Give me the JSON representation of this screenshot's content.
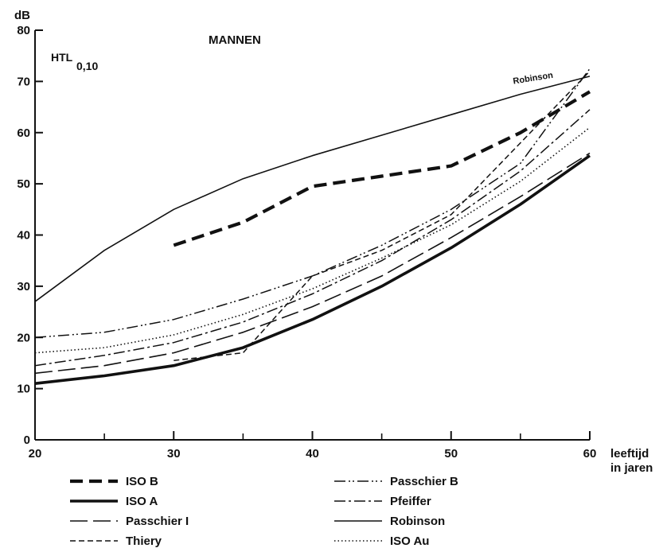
{
  "chart_data": {
    "type": "line",
    "ylabel": "dB",
    "xlabel": "leeftijd\nin jaren",
    "title": "MANNEN",
    "subtitle": {
      "main": "HTL",
      "sub": "0,10"
    },
    "xlim": [
      20,
      60
    ],
    "ylim": [
      0,
      80
    ],
    "x_ticks": [
      20,
      30,
      40,
      50,
      60
    ],
    "x_minor_ticks": [
      25,
      35,
      45,
      55
    ],
    "y_ticks": [
      0,
      10,
      20,
      30,
      40,
      50,
      60,
      70,
      80
    ],
    "grid": false,
    "legend_position": "bottom",
    "series": [
      {
        "name": "ISO B",
        "style": "bold-dash",
        "points": [
          [
            30,
            38
          ],
          [
            35,
            42.5
          ],
          [
            40,
            49.5
          ],
          [
            45,
            51.5
          ],
          [
            50,
            53.5
          ],
          [
            55,
            60
          ],
          [
            60,
            68
          ]
        ]
      },
      {
        "name": "ISO A",
        "style": "bold-solid",
        "points": [
          [
            20,
            11
          ],
          [
            25,
            12.5
          ],
          [
            30,
            14.5
          ],
          [
            35,
            18
          ],
          [
            40,
            23.5
          ],
          [
            45,
            30
          ],
          [
            50,
            37.5
          ],
          [
            55,
            46
          ],
          [
            60,
            55.5
          ]
        ]
      },
      {
        "name": "Passchier I",
        "style": "long-dash",
        "points": [
          [
            20,
            13
          ],
          [
            25,
            14.5
          ],
          [
            30,
            17
          ],
          [
            35,
            21
          ],
          [
            40,
            26
          ],
          [
            45,
            32
          ],
          [
            50,
            39.5
          ],
          [
            55,
            47.5
          ],
          [
            60,
            56
          ]
        ]
      },
      {
        "name": "Thiery",
        "style": "dash",
        "points": [
          [
            30,
            15.5
          ],
          [
            35,
            17
          ],
          [
            40,
            32
          ],
          [
            45,
            37
          ],
          [
            50,
            44
          ],
          [
            55,
            58
          ],
          [
            60,
            72
          ]
        ]
      },
      {
        "name": "Passchier B",
        "style": "dash-dot-dot",
        "points": [
          [
            20,
            20
          ],
          [
            25,
            21
          ],
          [
            30,
            23.5
          ],
          [
            35,
            27.5
          ],
          [
            40,
            32
          ],
          [
            45,
            38
          ],
          [
            50,
            45
          ],
          [
            55,
            54
          ],
          [
            60,
            72.5
          ]
        ]
      },
      {
        "name": "Pfeiffer",
        "style": "dash-dot",
        "points": [
          [
            20,
            14.5
          ],
          [
            25,
            16.5
          ],
          [
            30,
            19
          ],
          [
            35,
            23
          ],
          [
            40,
            28.5
          ],
          [
            45,
            35
          ],
          [
            50,
            43
          ],
          [
            55,
            52.5
          ],
          [
            60,
            64.5
          ]
        ]
      },
      {
        "name": "Robinson",
        "style": "thin-solid",
        "label": "Robinson",
        "points": [
          [
            20,
            27
          ],
          [
            25,
            37
          ],
          [
            30,
            45
          ],
          [
            35,
            51
          ],
          [
            40,
            55.5
          ],
          [
            45,
            59.5
          ],
          [
            50,
            63.5
          ],
          [
            55,
            67.5
          ],
          [
            60,
            71
          ]
        ]
      },
      {
        "name": "ISO Au",
        "style": "dotted",
        "points": [
          [
            20,
            17
          ],
          [
            25,
            18
          ],
          [
            30,
            20.5
          ],
          [
            35,
            24.5
          ],
          [
            40,
            29.5
          ],
          [
            45,
            35.5
          ],
          [
            50,
            42
          ],
          [
            55,
            50.5
          ],
          [
            60,
            61
          ]
        ]
      }
    ]
  }
}
